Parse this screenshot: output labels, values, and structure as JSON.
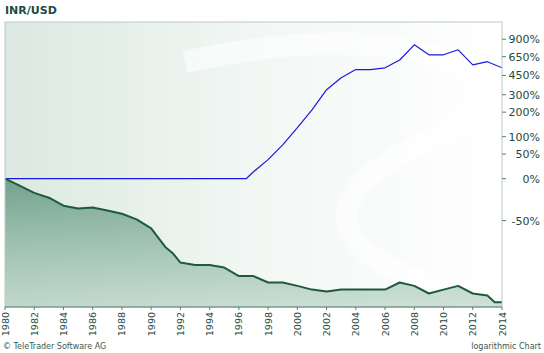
{
  "chart_data": {
    "type": "line",
    "title": "INR/USD",
    "annotations": [
      "© TeleTrader Software AG",
      "logarithmic Chart"
    ],
    "log": "y",
    "grid": false,
    "xlim": [
      1980,
      2014
    ],
    "xticks": [
      1980,
      1982,
      1984,
      1986,
      1988,
      1990,
      1992,
      1994,
      1996,
      1998,
      2000,
      2002,
      2004,
      2006,
      2008,
      2010,
      2012,
      2014
    ],
    "ylim": [
      -88,
      1230
    ],
    "yticks": [
      {
        "value": 900,
        "label": "900%"
      },
      {
        "value": 650,
        "label": "650%"
      },
      {
        "value": 450,
        "label": "450%"
      },
      {
        "value": 300,
        "label": "300%"
      },
      {
        "value": 200,
        "label": "200%"
      },
      {
        "value": 100,
        "label": "100%"
      },
      {
        "value": 50,
        "label": "50%"
      },
      {
        "value": 0,
        "label": "0%"
      },
      {
        "value": -50,
        "label": "-50%"
      }
    ],
    "series": [
      {
        "color": "#1a1adc",
        "x": [
          1980,
          1996.5,
          1997,
          1998,
          1999,
          2000,
          2001,
          2002,
          2003,
          2004,
          2005,
          2006,
          2007,
          2008,
          2009,
          2010,
          2011,
          2012,
          2013,
          2014
        ],
        "values": [
          0,
          0,
          12,
          37,
          75,
          132,
          212,
          335,
          430,
          506,
          506,
          524,
          610,
          813,
          673,
          673,
          740,
          556,
          590,
          524
        ]
      },
      {
        "color": "#1f5a3c",
        "x": [
          1980,
          1981,
          1982,
          1983,
          1984,
          1985,
          1986,
          1987,
          1988,
          1989,
          1990,
          1991,
          1991.5,
          1992,
          1993,
          1994,
          1995,
          1996,
          1997,
          1998,
          1999,
          2000,
          2001,
          2002,
          2003,
          2004,
          2005,
          2006,
          2007,
          2008,
          2009,
          2010,
          2011,
          2012,
          2013,
          2013.5,
          2014
        ],
        "values": [
          0,
          -11,
          -21,
          -27,
          -36,
          -39,
          -38,
          -41,
          -44,
          -49,
          -56,
          -68,
          -71,
          -75,
          -76,
          -76,
          -77,
          -80,
          -80,
          -82,
          -82,
          -83,
          -84,
          -84.5,
          -84,
          -84,
          -84,
          -84,
          -82,
          -83,
          -85,
          -84,
          -83,
          -85,
          -85.5,
          -87,
          -87
        ]
      }
    ]
  }
}
